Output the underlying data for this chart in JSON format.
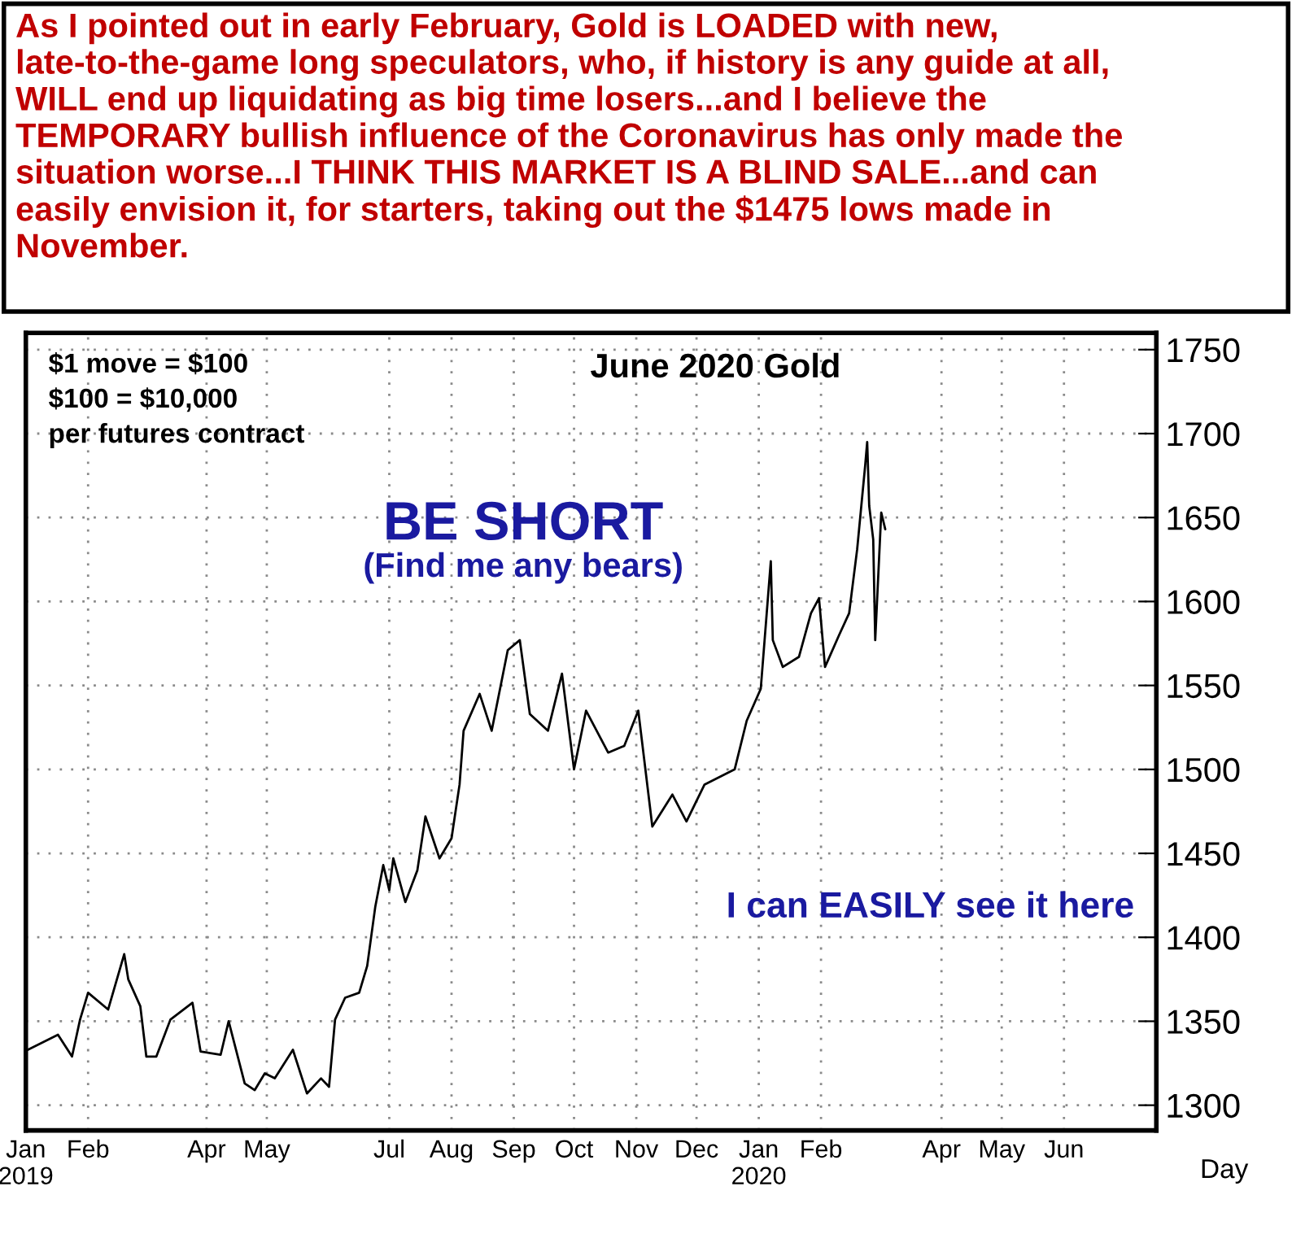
{
  "chart_data": {
    "type": "line",
    "title": "June 2020 Gold",
    "subtitle": "As I pointed out in early February, Gold is LOADED with new,\nlate-to-the-game long speculators, who, if history is any guide at all,\nWILL end up liquidating as big time losers...and I believe the\nTEMPORARY bullish influence of the Coronavirus has only made the\nsituation worse...I THINK THIS MARKET IS A BLIND SALE...and can\neasily envision it, for starters, taking out the $1475 lows made in\nNovember.",
    "xlabel": "Day",
    "annotations": [
      "$1 move = $100\n$100 = $10,000\nper futures contract",
      "BE SHORT",
      "(Find me any bears)",
      "I can EASILY see it here"
    ],
    "x": [
      "2019-01-02",
      "2019-01-17",
      "2019-01-24",
      "2019-01-28",
      "2019-02-01",
      "2019-02-11",
      "2019-02-19",
      "2019-02-21",
      "2019-02-27",
      "2019-03-02",
      "2019-03-07",
      "2019-03-14",
      "2019-03-25",
      "2019-03-29",
      "2019-04-08",
      "2019-04-12",
      "2019-04-20",
      "2019-04-25",
      "2019-04-30",
      "2019-05-05",
      "2019-05-14",
      "2019-05-21",
      "2019-05-28",
      "2019-06-01",
      "2019-06-04",
      "2019-06-09",
      "2019-06-16",
      "2019-06-20",
      "2019-06-24",
      "2019-06-28",
      "2019-07-01",
      "2019-07-03",
      "2019-07-09",
      "2019-07-15",
      "2019-07-19",
      "2019-07-26",
      "2019-08-01",
      "2019-08-05",
      "2019-08-07",
      "2019-08-15",
      "2019-08-21",
      "2019-08-29",
      "2019-09-04",
      "2019-09-09",
      "2019-09-18",
      "2019-09-25",
      "2019-10-01",
      "2019-10-07",
      "2019-10-18",
      "2019-10-26",
      "2019-11-02",
      "2019-11-09",
      "2019-11-19",
      "2019-11-26",
      "2019-12-05",
      "2019-12-20",
      "2019-12-26",
      "2020-01-02",
      "2020-01-07",
      "2020-01-08",
      "2020-01-13",
      "2020-01-21",
      "2020-01-27",
      "2020-01-31",
      "2020-02-03",
      "2020-02-10",
      "2020-02-15",
      "2020-02-19",
      "2020-02-23",
      "2020-02-24",
      "2020-02-25",
      "2020-02-27",
      "2020-02-28",
      "2020-03-02",
      "2020-03-04"
    ],
    "series": [
      {
        "color": "#000000",
        "values": [
          1333,
          1342,
          1329,
          1351,
          1367,
          1357,
          1390,
          1375,
          1359,
          1329,
          1329,
          1351,
          1361,
          1332,
          1330,
          1350,
          1313,
          1309,
          1319,
          1316,
          1333,
          1307,
          1316,
          1311,
          1351,
          1364,
          1367,
          1383,
          1418,
          1443,
          1428,
          1447,
          1421,
          1440,
          1472,
          1447,
          1459,
          1491,
          1523,
          1545,
          1523,
          1571,
          1577,
          1533,
          1523,
          1557,
          1500,
          1535,
          1510,
          1514,
          1535,
          1466,
          1485,
          1469,
          1491,
          1500,
          1529,
          1548,
          1624,
          1577,
          1561,
          1567,
          1593,
          1602,
          1561,
          1580,
          1593,
          1631,
          1681,
          1695,
          1657,
          1637,
          1577,
          1653,
          1643
        ]
      }
    ],
    "xlim": [
      "2019-01-01",
      "2020-07-17"
    ],
    "xticks": [
      {
        "value": "2019-01-01",
        "label": "Jan\n2019"
      },
      {
        "value": "2019-02-01",
        "label": "Feb"
      },
      {
        "value": "2019-04-01",
        "label": "Apr"
      },
      {
        "value": "2019-05-01",
        "label": "May"
      },
      {
        "value": "2019-07-01",
        "label": "Jul"
      },
      {
        "value": "2019-08-01",
        "label": "Aug"
      },
      {
        "value": "2019-09-01",
        "label": "Sep"
      },
      {
        "value": "2019-10-01",
        "label": "Oct"
      },
      {
        "value": "2019-11-01",
        "label": "Nov"
      },
      {
        "value": "2019-12-01",
        "label": "Dec"
      },
      {
        "value": "2020-01-01",
        "label": "Jan\n2020"
      },
      {
        "value": "2020-02-01",
        "label": "Feb"
      },
      {
        "value": "2020-04-01",
        "label": "Apr"
      },
      {
        "value": "2020-05-01",
        "label": "May"
      },
      {
        "value": "2020-06-01",
        "label": "Jun"
      }
    ],
    "ylim": [
      1285,
      1760
    ],
    "yticks": [
      1300,
      1350,
      1400,
      1450,
      1500,
      1550,
      1600,
      1650,
      1700,
      1750
    ],
    "grid": true,
    "line_style": "solid",
    "marker": "none"
  }
}
